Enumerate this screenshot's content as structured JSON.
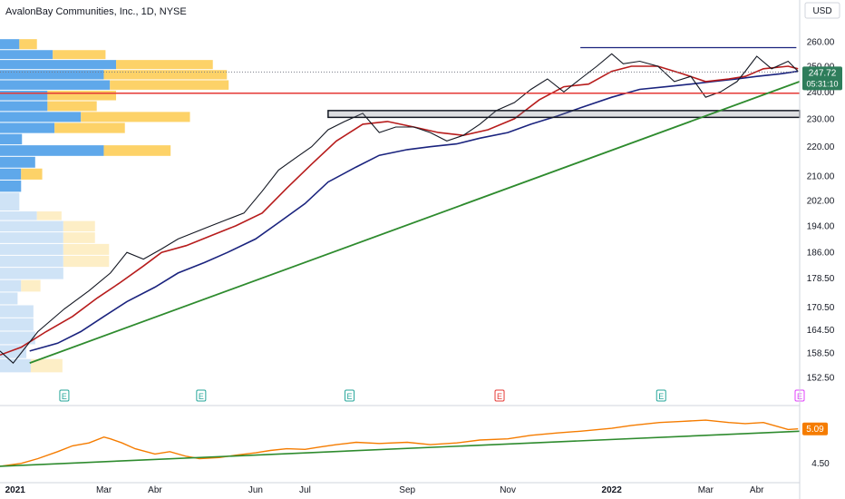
{
  "title": "AvalonBay Communities, Inc., 1D, NYSE",
  "currency": "USD",
  "colors": {
    "up": "#26a69a",
    "down": "#131722",
    "ema_fast": "#b71c1c",
    "ema_slow": "#1a237e",
    "support": "#e53935",
    "trend": "#2e8b2e",
    "rs_line": "#f57c00",
    "vol_blue": "#5fa8ea",
    "vol_yellow": "#fdd268",
    "vol_blue_light": "#cfe3f6",
    "vol_yellow_light": "#fdeec6"
  },
  "price_badge": {
    "price": "247.72",
    "countdown": "05:31:10"
  },
  "rs_badge": "5.09",
  "chart_data": [
    {
      "type": "line",
      "title": "AvalonBay Communities, Inc., 1D, NYSE",
      "y_scale": "log",
      "ylim": [
        149,
        266
      ],
      "y_ticks": [
        "260.00",
        "250.00",
        "240.00",
        "230.00",
        "220.00",
        "210.00",
        "202.00",
        "194.00",
        "186.00",
        "178.50",
        "170.50",
        "164.50",
        "158.50",
        "152.50"
      ],
      "x_ticks": [
        "2021",
        "Mar",
        "Abr",
        "Jun",
        "Jul",
        "Sep",
        "Nov",
        "2022",
        "Mar",
        "Abr"
      ],
      "x_tick_dates": [
        "2021-01-04",
        "2021-03-01",
        "2021-04-01",
        "2021-06-01",
        "2021-07-01",
        "2021-09-01",
        "2021-11-01",
        "2022-01-03",
        "2022-03-01",
        "2022-04-01"
      ],
      "xlim": [
        "2020-12-28",
        "2022-04-27"
      ],
      "close": {
        "dates": [
          "2020-12-28",
          "2021-01-05",
          "2021-01-20",
          "2021-02-05",
          "2021-02-20",
          "2021-03-05",
          "2021-03-15",
          "2021-03-25",
          "2021-04-05",
          "2021-04-15",
          "2021-04-25",
          "2021-05-05",
          "2021-05-15",
          "2021-05-25",
          "2021-06-05",
          "2021-06-15",
          "2021-06-25",
          "2021-07-05",
          "2021-07-15",
          "2021-07-25",
          "2021-08-05",
          "2021-08-15",
          "2021-08-25",
          "2021-09-05",
          "2021-09-15",
          "2021-09-25",
          "2021-10-05",
          "2021-10-15",
          "2021-10-25",
          "2021-11-05",
          "2021-11-15",
          "2021-11-25",
          "2021-12-05",
          "2021-12-15",
          "2021-12-25",
          "2022-01-03",
          "2022-01-10",
          "2022-01-20",
          "2022-01-31",
          "2022-02-10",
          "2022-02-20",
          "2022-03-01",
          "2022-03-10",
          "2022-03-20",
          "2022-03-25",
          "2022-04-01",
          "2022-04-10",
          "2022-04-20",
          "2022-04-26"
        ],
        "values": [
          159,
          156,
          164,
          170,
          175,
          180,
          186,
          184,
          187,
          190,
          192,
          194,
          196,
          198,
          205,
          212,
          216,
          220,
          226,
          229,
          232,
          225,
          227,
          227,
          225,
          222,
          224,
          228,
          233,
          236,
          241,
          245,
          240,
          245,
          250,
          255,
          251,
          252,
          250,
          244,
          246,
          238,
          240,
          244,
          248,
          254,
          249,
          252,
          248
        ]
      },
      "ema_fast": {
        "dates": [
          "2020-12-28",
          "2021-01-10",
          "2021-01-25",
          "2021-02-10",
          "2021-02-25",
          "2021-03-10",
          "2021-03-25",
          "2021-04-05",
          "2021-04-20",
          "2021-05-05",
          "2021-05-20",
          "2021-06-05",
          "2021-06-20",
          "2021-07-05",
          "2021-07-20",
          "2021-08-05",
          "2021-08-20",
          "2021-09-05",
          "2021-09-20",
          "2021-10-05",
          "2021-10-20",
          "2021-11-05",
          "2021-11-20",
          "2021-12-05",
          "2021-12-20",
          "2022-01-03",
          "2022-01-15",
          "2022-01-31",
          "2022-02-15",
          "2022-03-01",
          "2022-03-15",
          "2022-03-25",
          "2022-04-05",
          "2022-04-20",
          "2022-04-26"
        ],
        "values": [
          158,
          160,
          164,
          168,
          173,
          177,
          182,
          186,
          188,
          191,
          194,
          198,
          206,
          214,
          222,
          228,
          229,
          227,
          225,
          224,
          226,
          230,
          237,
          242,
          243,
          248,
          250,
          250,
          247,
          244,
          245,
          246,
          249,
          250,
          249
        ]
      },
      "ema_slow": {
        "dates": [
          "2021-01-15",
          "2021-02-01",
          "2021-02-15",
          "2021-03-01",
          "2021-03-15",
          "2021-04-01",
          "2021-04-15",
          "2021-05-01",
          "2021-05-15",
          "2021-06-01",
          "2021-06-15",
          "2021-07-01",
          "2021-07-15",
          "2021-08-01",
          "2021-08-15",
          "2021-09-01",
          "2021-09-15",
          "2021-10-01",
          "2021-10-15",
          "2021-11-01",
          "2021-11-15",
          "2021-12-01",
          "2021-12-15",
          "2022-01-03",
          "2022-01-20",
          "2022-02-05",
          "2022-02-20",
          "2022-03-05",
          "2022-03-20",
          "2022-04-01",
          "2022-04-15",
          "2022-04-26"
        ],
        "values": [
          159,
          161,
          164,
          168,
          172,
          176,
          180,
          183,
          186,
          190,
          195,
          201,
          208,
          213,
          217,
          219,
          220,
          221,
          223,
          225,
          228,
          231,
          234,
          238,
          241,
          242,
          243,
          244,
          245,
          246,
          247,
          248
        ]
      },
      "resistance": {
        "y": 257.5,
        "from": "2021-12-15",
        "to": "2022-04-25"
      },
      "support_line": {
        "y": 239.5
      },
      "consolidation_box": {
        "y_range": [
          230.5,
          233
        ],
        "from": "2021-07-15",
        "to": "2022-04-27"
      },
      "trendline": {
        "from": {
          "date": "2021-01-15",
          "y": 156
        },
        "to": {
          "date": "2022-04-27",
          "y": 244
        }
      },
      "earnings_markers": [
        {
          "date": "2021-02-05",
          "label": "E",
          "kind": "past"
        },
        {
          "date": "2021-04-29",
          "label": "E",
          "kind": "past"
        },
        {
          "date": "2021-07-28",
          "label": "E",
          "kind": "past"
        },
        {
          "date": "2021-10-27",
          "label": "E",
          "kind": "miss"
        },
        {
          "date": "2022-02-02",
          "label": "E",
          "kind": "past"
        },
        {
          "date": "2022-04-27",
          "label": "E",
          "kind": "upcoming"
        }
      ],
      "volume_profile": [
        {
          "price_range": [
            256.5,
            261
          ],
          "up": 22,
          "down": 20
        },
        {
          "price_range": [
            252.5,
            256.5
          ],
          "up": 60,
          "down": 60
        },
        {
          "price_range": [
            248.5,
            252.5
          ],
          "up": 132,
          "down": 110
        },
        {
          "price_range": [
            244.5,
            248.5
          ],
          "up": 118,
          "down": 140
        },
        {
          "price_range": [
            240.5,
            244.5
          ],
          "up": 125,
          "down": 135
        },
        {
          "price_range": [
            236.5,
            240.5
          ],
          "up": 54,
          "down": 78
        },
        {
          "price_range": [
            232.5,
            236.5
          ],
          "up": 54,
          "down": 56
        },
        {
          "price_range": [
            228.5,
            232.5
          ],
          "up": 92,
          "down": 124
        },
        {
          "price_range": [
            224.5,
            228.5
          ],
          "up": 62,
          "down": 80
        },
        {
          "price_range": [
            220.5,
            224.5
          ],
          "up": 25,
          "down": 0
        },
        {
          "price_range": [
            216.5,
            220.5
          ],
          "up": 118,
          "down": 76
        },
        {
          "price_range": [
            212.5,
            216.5
          ],
          "up": 40,
          "down": 0
        },
        {
          "price_range": [
            208.5,
            212.5
          ],
          "up": 24,
          "down": 24
        },
        {
          "price_range": [
            204.5,
            208.5
          ],
          "up": 24,
          "down": 0
        },
        {
          "price_range": [
            198.5,
            204.5
          ],
          "up": 22,
          "down": 0
        },
        {
          "price_range": [
            195.5,
            198.5
          ],
          "up": 42,
          "down": 28
        },
        {
          "price_range": [
            192,
            195.5
          ],
          "up": 72,
          "down": 36
        },
        {
          "price_range": [
            188.5,
            192
          ],
          "up": 72,
          "down": 36
        },
        {
          "price_range": [
            185,
            188.5
          ],
          "up": 72,
          "down": 52
        },
        {
          "price_range": [
            181.5,
            185
          ],
          "up": 72,
          "down": 52
        },
        {
          "price_range": [
            178,
            181.5
          ],
          "up": 72,
          "down": 0
        },
        {
          "price_range": [
            174.5,
            178
          ],
          "up": 24,
          "down": 22
        },
        {
          "price_range": [
            171,
            174.5
          ],
          "up": 20,
          "down": 0
        },
        {
          "price_range": [
            167.5,
            171
          ],
          "up": 38,
          "down": 0
        },
        {
          "price_range": [
            164,
            167.5
          ],
          "up": 38,
          "down": 0
        },
        {
          "price_range": [
            160.5,
            164
          ],
          "up": 40,
          "down": 0
        },
        {
          "price_range": [
            157,
            160.5
          ],
          "up": 30,
          "down": 0
        },
        {
          "price_range": [
            153.5,
            157
          ],
          "up": 35,
          "down": 36
        }
      ]
    },
    {
      "type": "line",
      "y_ticks": [
        "4.50"
      ],
      "ylim": [
        4.2,
        5.35
      ],
      "rs_line": {
        "dates": [
          "2020-12-28",
          "2021-01-10",
          "2021-01-20",
          "2021-02-01",
          "2021-02-10",
          "2021-02-20",
          "2021-03-01",
          "2021-03-05",
          "2021-03-12",
          "2021-03-20",
          "2021-04-01",
          "2021-04-10",
          "2021-04-20",
          "2021-04-28",
          "2021-05-10",
          "2021-05-20",
          "2021-06-01",
          "2021-06-10",
          "2021-06-20",
          "2021-07-01",
          "2021-07-10",
          "2021-07-20",
          "2021-08-01",
          "2021-08-15",
          "2021-09-01",
          "2021-09-15",
          "2021-10-01",
          "2021-10-15",
          "2021-11-01",
          "2021-11-15",
          "2021-12-01",
          "2021-12-15",
          "2022-01-03",
          "2022-01-15",
          "2022-02-01",
          "2022-02-15",
          "2022-03-01",
          "2022-03-15",
          "2022-03-25",
          "2022-04-05",
          "2022-04-15",
          "2022-04-20",
          "2022-04-26"
        ],
        "values": [
          4.45,
          4.5,
          4.58,
          4.7,
          4.8,
          4.85,
          4.95,
          4.92,
          4.85,
          4.75,
          4.66,
          4.7,
          4.62,
          4.58,
          4.6,
          4.64,
          4.68,
          4.72,
          4.75,
          4.74,
          4.78,
          4.82,
          4.86,
          4.84,
          4.86,
          4.82,
          4.85,
          4.9,
          4.92,
          4.98,
          5.02,
          5.05,
          5.1,
          5.15,
          5.2,
          5.22,
          5.24,
          5.2,
          5.18,
          5.2,
          5.12,
          5.08,
          5.09
        ]
      },
      "trendline": {
        "from": {
          "date": "2020-12-28",
          "y": 4.45
        },
        "to": {
          "date": "2022-04-27",
          "y": 5.05
        }
      }
    }
  ]
}
